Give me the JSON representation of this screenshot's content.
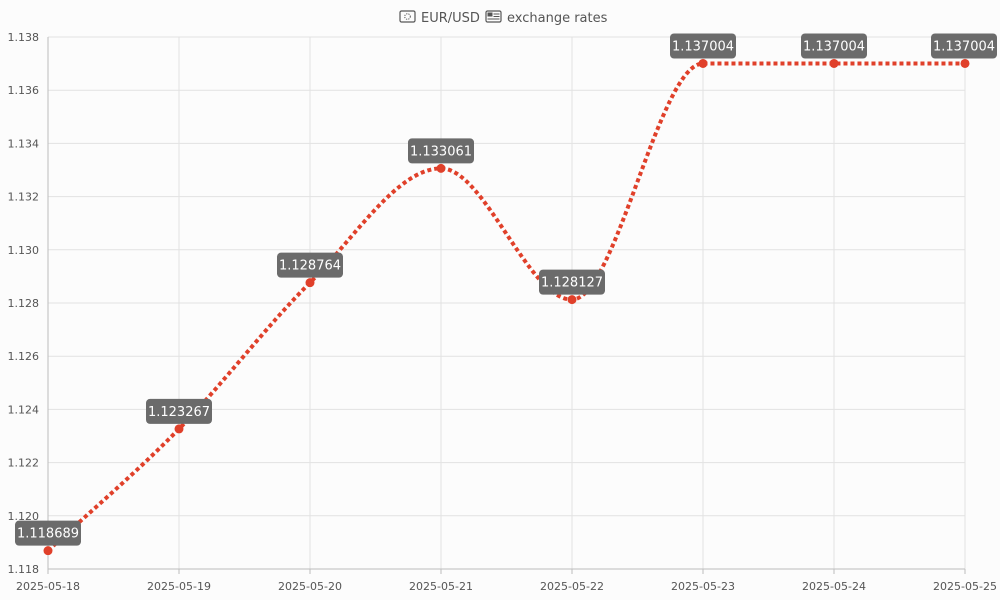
{
  "chart_data": {
    "type": "line",
    "title": "EUR/USD exchange rates",
    "title_icons": [
      "flag-eu-icon",
      "flag-us-icon"
    ],
    "xlabel": "",
    "ylabel": "",
    "categories": [
      "2025-05-18",
      "2025-05-19",
      "2025-05-20",
      "2025-05-21",
      "2025-05-22",
      "2025-05-23",
      "2025-05-24",
      "2025-05-25"
    ],
    "series": [
      {
        "values": [
          1.118689,
          1.123267,
          1.128764,
          1.133061,
          1.128127,
          1.137004,
          1.137004,
          1.137004
        ],
        "labels": [
          "1.118689",
          "1.123267",
          "1.128764",
          "1.133061",
          "1.128127",
          "1.137004",
          "1.137004",
          "1.137004"
        ],
        "color": "#e0402a",
        "line_style": "dotted",
        "smooth": true
      }
    ],
    "ylim": [
      1.118,
      1.138
    ],
    "yticks": [
      "1.118",
      "1.120",
      "1.122",
      "1.124",
      "1.126",
      "1.128",
      "1.130",
      "1.132",
      "1.134",
      "1.136",
      "1.138"
    ],
    "grid": true,
    "legend": "none",
    "label_box_color": "#6b6b6b"
  }
}
